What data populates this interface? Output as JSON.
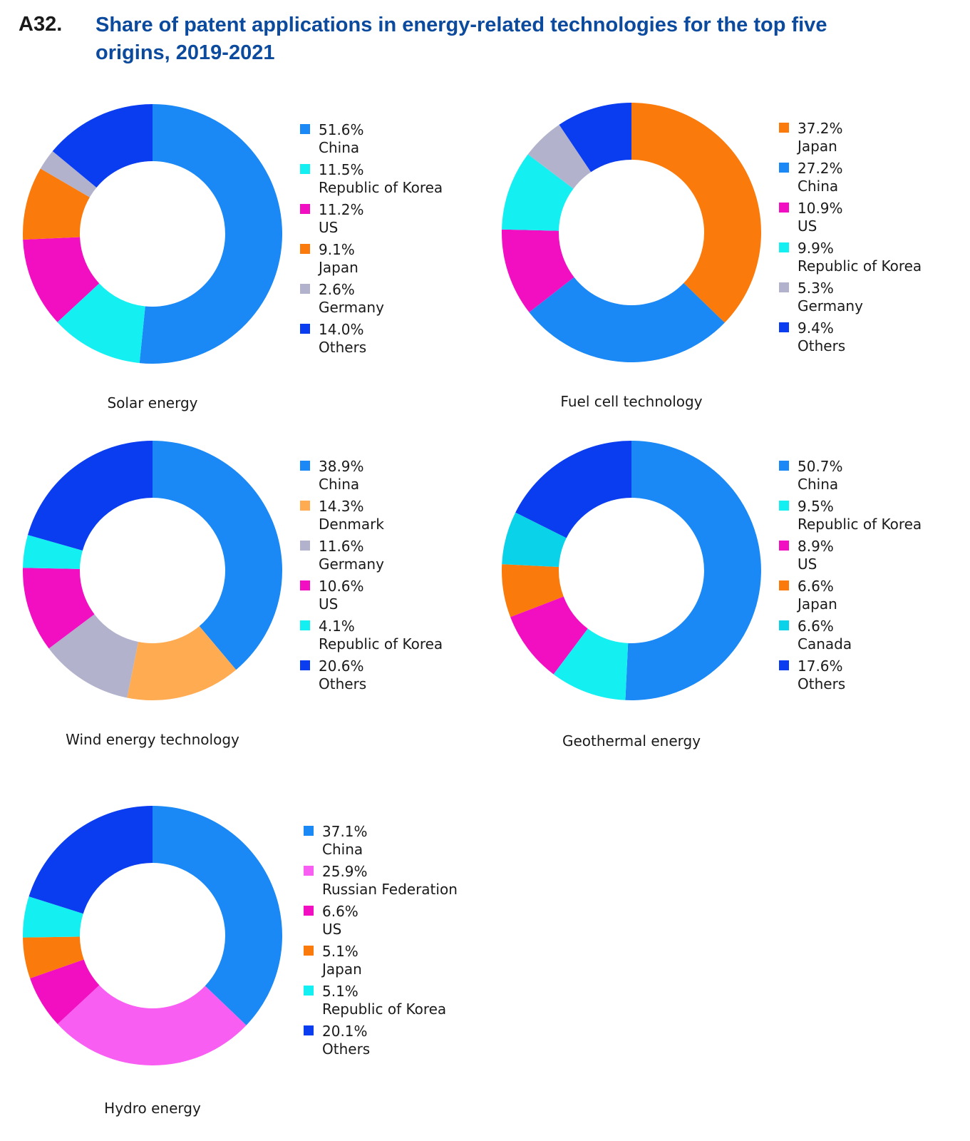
{
  "figure": {
    "code": "A32.",
    "title": "Share of patent applications in energy-related technologies for the top five origins, 2019-2021"
  },
  "colors": {
    "china": "#1a88f5",
    "korea": "#14f0f2",
    "us": "#f20fc2",
    "japan": "#fb7a0c",
    "germany": "#b2b2cd",
    "others": "#0a3cf0",
    "denmark": "#ffab52",
    "canada": "#0ad2e8",
    "russia": "#f85ef2"
  },
  "chart_data": [
    {
      "type": "pie",
      "title": "Solar energy",
      "slices": [
        {
          "label": "China",
          "value": 51.6,
          "value_text": "51.6%",
          "color": "#1a88f5"
        },
        {
          "label": "Republic of Korea",
          "value": 11.5,
          "value_text": "11.5%",
          "color": "#14f0f2"
        },
        {
          "label": "US",
          "value": 11.2,
          "value_text": "11.2%",
          "color": "#f20fc2"
        },
        {
          "label": "Japan",
          "value": 9.1,
          "value_text": "9.1%",
          "color": "#fb7a0c"
        },
        {
          "label": "Germany",
          "value": 2.6,
          "value_text": "2.6%",
          "color": "#b2b2cd"
        },
        {
          "label": "Others",
          "value": 14.0,
          "value_text": "14.0%",
          "color": "#0a3cf0"
        }
      ]
    },
    {
      "type": "pie",
      "title": "Fuel cell technology",
      "slices": [
        {
          "label": "Japan",
          "value": 37.2,
          "value_text": "37.2%",
          "color": "#fb7a0c"
        },
        {
          "label": "China",
          "value": 27.2,
          "value_text": "27.2%",
          "color": "#1a88f5"
        },
        {
          "label": "US",
          "value": 10.9,
          "value_text": "10.9%",
          "color": "#f20fc2"
        },
        {
          "label": "Republic of Korea",
          "value": 9.9,
          "value_text": "9.9%",
          "color": "#14f0f2"
        },
        {
          "label": "Germany",
          "value": 5.3,
          "value_text": "5.3%",
          "color": "#b2b2cd"
        },
        {
          "label": "Others",
          "value": 9.4,
          "value_text": "9.4%",
          "color": "#0a3cf0"
        }
      ]
    },
    {
      "type": "pie",
      "title": "Wind energy technology",
      "slices": [
        {
          "label": "China",
          "value": 38.9,
          "value_text": "38.9%",
          "color": "#1a88f5"
        },
        {
          "label": "Denmark",
          "value": 14.3,
          "value_text": "14.3%",
          "color": "#ffab52"
        },
        {
          "label": "Germany",
          "value": 11.6,
          "value_text": "11.6%",
          "color": "#b2b2cd"
        },
        {
          "label": "US",
          "value": 10.6,
          "value_text": "10.6%",
          "color": "#f20fc2"
        },
        {
          "label": "Republic of Korea",
          "value": 4.1,
          "value_text": "4.1%",
          "color": "#14f0f2"
        },
        {
          "label": "Others",
          "value": 20.6,
          "value_text": "20.6%",
          "color": "#0a3cf0"
        }
      ]
    },
    {
      "type": "pie",
      "title": "Geothermal energy",
      "slices": [
        {
          "label": "China",
          "value": 50.7,
          "value_text": "50.7%",
          "color": "#1a88f5"
        },
        {
          "label": "Republic of Korea",
          "value": 9.5,
          "value_text": "9.5%",
          "color": "#14f0f2"
        },
        {
          "label": "US",
          "value": 8.9,
          "value_text": "8.9%",
          "color": "#f20fc2"
        },
        {
          "label": "Japan",
          "value": 6.6,
          "value_text": "6.6%",
          "color": "#fb7a0c"
        },
        {
          "label": "Canada",
          "value": 6.6,
          "value_text": "6.6%",
          "color": "#0ad2e8"
        },
        {
          "label": "Others",
          "value": 17.6,
          "value_text": "17.6%",
          "color": "#0a3cf0"
        }
      ]
    },
    {
      "type": "pie",
      "title": "Hydro energy",
      "slices": [
        {
          "label": "China",
          "value": 37.1,
          "value_text": "37.1%",
          "color": "#1a88f5"
        },
        {
          "label": "Russian Federation",
          "value": 25.9,
          "value_text": "25.9%",
          "color": "#f85ef2"
        },
        {
          "label": "US",
          "value": 6.6,
          "value_text": "6.6%",
          "color": "#f20fc2"
        },
        {
          "label": "Japan",
          "value": 5.1,
          "value_text": "5.1%",
          "color": "#fb7a0c"
        },
        {
          "label": "Republic of Korea",
          "value": 5.1,
          "value_text": "5.1%",
          "color": "#14f0f2"
        },
        {
          "label": "Others",
          "value": 20.1,
          "value_text": "20.1%",
          "color": "#0a3cf0"
        }
      ]
    }
  ]
}
